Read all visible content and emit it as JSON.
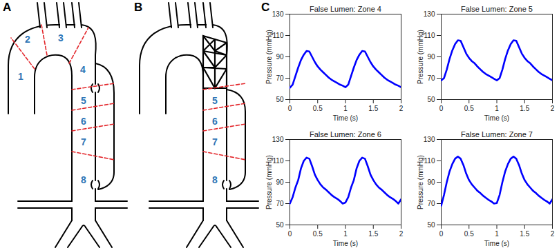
{
  "panel_labels": [
    "A",
    "B",
    "C"
  ],
  "diagram": {
    "A": {
      "zones": [
        "1",
        "2",
        "3",
        "4",
        "5",
        "6",
        "7",
        "8"
      ]
    },
    "B": {
      "zones": [
        "5",
        "6",
        "7",
        "8"
      ]
    }
  },
  "chart_data": [
    {
      "type": "line",
      "title": "False Lumen: Zone 4",
      "x_label": "Time (s)",
      "y_label": "Pressure (mmHg)",
      "x": [
        0,
        0.05,
        0.1,
        0.15,
        0.2,
        0.25,
        0.3,
        0.35,
        0.4,
        0.45,
        0.5,
        0.55,
        0.6,
        0.65,
        0.7,
        0.75,
        0.8,
        0.85,
        0.9,
        0.95,
        1,
        1.05,
        1.1,
        1.15,
        1.2,
        1.25,
        1.3,
        1.35,
        1.4,
        1.45,
        1.5,
        1.55,
        1.6,
        1.65,
        1.7,
        1.75,
        1.8,
        1.85,
        1.9,
        1.95,
        2
      ],
      "values": [
        61,
        64,
        72,
        80,
        87,
        92,
        95.5,
        95,
        90,
        85,
        81,
        78,
        75.5,
        73,
        70.5,
        68.5,
        67,
        65.5,
        64,
        63,
        61.5,
        64,
        72,
        80,
        87,
        92,
        95.5,
        95,
        90,
        85,
        81,
        78,
        75.5,
        73,
        70.5,
        68.5,
        67,
        65.5,
        64,
        63,
        61.5
      ],
      "color": "#0000ff",
      "xlim": [
        0,
        2
      ],
      "ylim": [
        50,
        130
      ],
      "xticks": [
        0,
        0.5,
        1,
        1.5,
        2
      ],
      "yticks": [
        50,
        70,
        90,
        110,
        130
      ]
    },
    {
      "type": "line",
      "title": "False Lumen: Zone 5",
      "x_label": "Time (s)",
      "y_label": "Pressure (mmHg)",
      "x": [
        0,
        0.05,
        0.1,
        0.15,
        0.2,
        0.25,
        0.3,
        0.35,
        0.4,
        0.45,
        0.5,
        0.55,
        0.6,
        0.65,
        0.7,
        0.75,
        0.8,
        0.85,
        0.9,
        0.95,
        1,
        1.05,
        1.1,
        1.15,
        1.2,
        1.25,
        1.3,
        1.35,
        1.4,
        1.45,
        1.5,
        1.55,
        1.6,
        1.65,
        1.7,
        1.75,
        1.8,
        1.85,
        1.9,
        1.95,
        2
      ],
      "values": [
        68,
        70,
        78,
        88,
        96,
        102,
        105.5,
        105,
        99,
        93,
        89,
        86,
        84,
        81,
        78.5,
        76,
        74,
        72.5,
        71,
        69.5,
        68,
        70,
        78,
        88,
        96,
        102,
        105.5,
        105,
        99,
        93,
        89,
        86,
        84,
        81,
        78.5,
        76,
        74,
        72.5,
        71,
        69.5,
        68
      ],
      "color": "#0000ff",
      "xlim": [
        0,
        2
      ],
      "ylim": [
        50,
        130
      ],
      "xticks": [
        0,
        0.5,
        1,
        1.5,
        2
      ],
      "yticks": [
        50,
        70,
        90,
        110,
        130
      ]
    },
    {
      "type": "line",
      "title": "False Lumen: Zone 6",
      "x_label": "Time (s)",
      "y_label": "Pressure (mmHg)",
      "x": [
        0,
        0.05,
        0.1,
        0.15,
        0.2,
        0.25,
        0.3,
        0.35,
        0.4,
        0.45,
        0.5,
        0.55,
        0.6,
        0.65,
        0.7,
        0.75,
        0.8,
        0.85,
        0.9,
        0.95,
        1,
        1.05,
        1.1,
        1.15,
        1.2,
        1.25,
        1.3,
        1.35,
        1.4,
        1.45,
        1.5,
        1.55,
        1.6,
        1.65,
        1.7,
        1.75,
        1.8,
        1.85,
        1.9,
        1.95,
        2
      ],
      "values": [
        70,
        76,
        85,
        92,
        103,
        110,
        113,
        112,
        105,
        97,
        92,
        88,
        85,
        83,
        80.5,
        78,
        76,
        74.5,
        72.5,
        70,
        71,
        76,
        85,
        92,
        103,
        110,
        113,
        112,
        105,
        97,
        92,
        88,
        85,
        83,
        80.5,
        78,
        76,
        74.5,
        72.5,
        70,
        74
      ],
      "color": "#0000ff",
      "xlim": [
        0,
        2
      ],
      "ylim": [
        50,
        130
      ],
      "xticks": [
        0,
        0.5,
        1,
        1.5,
        2
      ],
      "yticks": [
        50,
        70,
        90,
        110,
        130
      ]
    },
    {
      "type": "line",
      "title": "False Lumen: Zone 7",
      "x_label": "Time (s)",
      "y_label": "Pressure (mmHg)",
      "x": [
        0,
        0.05,
        0.1,
        0.15,
        0.2,
        0.25,
        0.3,
        0.35,
        0.4,
        0.45,
        0.5,
        0.55,
        0.6,
        0.65,
        0.7,
        0.75,
        0.8,
        0.85,
        0.9,
        0.95,
        1,
        1.05,
        1.1,
        1.15,
        1.2,
        1.25,
        1.3,
        1.35,
        1.4,
        1.45,
        1.5,
        1.55,
        1.6,
        1.65,
        1.7,
        1.75,
        1.8,
        1.85,
        1.9,
        1.95,
        2
      ],
      "values": [
        68,
        78,
        90,
        100,
        107,
        112,
        114,
        112,
        106,
        98,
        92,
        88,
        85,
        82,
        80,
        77.5,
        75.5,
        73.5,
        72,
        70,
        70.5,
        78,
        90,
        100,
        107,
        112,
        114,
        112,
        106,
        98,
        92,
        88,
        85,
        82,
        80,
        77.5,
        75.5,
        73.5,
        72,
        70,
        74
      ],
      "color": "#0000ff",
      "xlim": [
        0,
        2
      ],
      "ylim": [
        50,
        130
      ],
      "xticks": [
        0,
        0.5,
        1,
        1.5,
        2
      ],
      "yticks": [
        50,
        70,
        90,
        110,
        130
      ]
    }
  ]
}
